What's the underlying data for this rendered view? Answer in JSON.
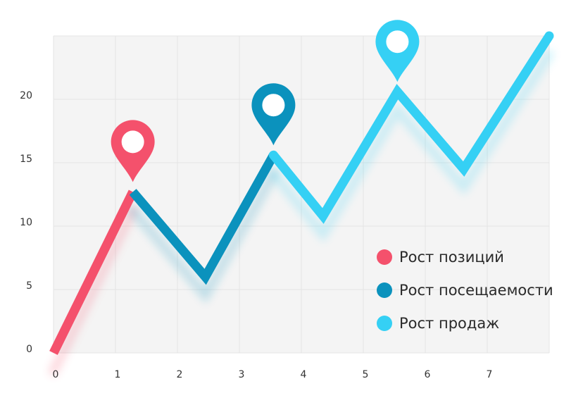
{
  "chart_data": {
    "type": "line",
    "title": "",
    "xlabel": "",
    "ylabel": "",
    "xlim": [
      0,
      8
    ],
    "ylim": [
      0,
      25
    ],
    "x_ticks": [
      0,
      1,
      2,
      3,
      4,
      5,
      6,
      7
    ],
    "y_ticks": [
      0,
      5,
      10,
      15,
      20
    ],
    "grid": true,
    "legend_position": "bottom-right",
    "series": [
      {
        "name": "Рост позиций",
        "color": "#f4516c",
        "points": [
          [
            0,
            0
          ],
          [
            1.28,
            12.7
          ]
        ]
      },
      {
        "name": "Рост посещаемости",
        "color": "#0b92bd",
        "points": [
          [
            1.28,
            12.7
          ],
          [
            2.45,
            6.0
          ],
          [
            3.55,
            15.6
          ]
        ]
      },
      {
        "name": "Рост продаж",
        "color": "#35d0f4",
        "points": [
          [
            3.55,
            15.6
          ],
          [
            4.35,
            10.8
          ],
          [
            5.55,
            20.6
          ],
          [
            6.62,
            14.5
          ],
          [
            8.0,
            25.0
          ]
        ]
      }
    ],
    "markers": [
      {
        "series": "Рост позиций",
        "color": "#f4516c",
        "point": [
          1.28,
          12.7
        ],
        "icon": "map-pin-icon"
      },
      {
        "series": "Рост посещаемости",
        "color": "#0b92bd",
        "point": [
          3.55,
          15.6
        ],
        "icon": "map-pin-icon"
      },
      {
        "series": "Рост продаж",
        "color": "#35d0f4",
        "point": [
          5.55,
          20.6
        ],
        "icon": "map-pin-icon"
      }
    ],
    "legend": [
      {
        "label": "Рост позиций",
        "color": "#f4516c"
      },
      {
        "label": "Рост посещаемости",
        "color": "#0b92bd"
      },
      {
        "label": "Рост продаж",
        "color": "#35d0f4"
      }
    ],
    "colors": {
      "plot_background": "#f4f4f4",
      "grid": "#e4e4e4"
    }
  }
}
